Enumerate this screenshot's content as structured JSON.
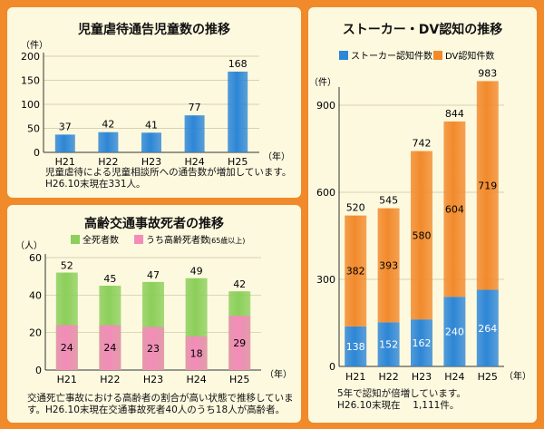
{
  "chart_data": [
    {
      "type": "bar",
      "title": "児童虐待通告児童数の推移",
      "ylabel": "（件）",
      "x_unit": "（年）",
      "categories": [
        "H21",
        "H22",
        "H23",
        "H24",
        "H25"
      ],
      "values": [
        37,
        42,
        41,
        77,
        168
      ],
      "ylim": [
        0,
        200
      ],
      "yticks": [
        0,
        50,
        100,
        150,
        200
      ],
      "colors": {
        "bar": "#2d86d6"
      },
      "notes": [
        "児童虐待による児童相談所への通告数が増加しています。",
        "H26.10末現在331人。"
      ]
    },
    {
      "type": "bar",
      "title": "高齢交通事故死者の推移",
      "ylabel": "（人）",
      "x_unit": "（年）",
      "categories": [
        "H21",
        "H22",
        "H23",
        "H24",
        "H25"
      ],
      "series": [
        {
          "name": "全死者数",
          "values": [
            52,
            45,
            47,
            49,
            42
          ],
          "color": "#8ccf5a"
        },
        {
          "name": "うち高齢死者数",
          "values": [
            24,
            24,
            23,
            18,
            29
          ],
          "color": "#f48cba"
        }
      ],
      "legend_suffix": "(65歳以上)",
      "ylim": [
        0,
        60
      ],
      "yticks": [
        0,
        20,
        40,
        60
      ],
      "notes": [
        "交通死亡事故における高齢者の割合が高い状態で推移していま",
        "す。H26.10末現在交通事故死者40人のうち18人が高齢者。"
      ]
    },
    {
      "type": "bar",
      "stacked": true,
      "title": "ストーカー・DV認知の推移",
      "ylabel": "（件）",
      "x_unit": "（年）",
      "categories": [
        "H21",
        "H22",
        "H23",
        "H24",
        "H25"
      ],
      "series": [
        {
          "name": "ストーカー認知件数",
          "values": [
            138,
            152,
            162,
            240,
            264
          ],
          "color": "#2d86d6"
        },
        {
          "name": "DV認知件数",
          "values": [
            382,
            393,
            580,
            604,
            719
          ],
          "color": "#f28a2c"
        }
      ],
      "totals": [
        520,
        545,
        742,
        844,
        983
      ],
      "ylim": [
        0,
        950
      ],
      "yticks": [
        0,
        300,
        600,
        900
      ],
      "notes": [
        "5年で認知が倍増しています。",
        "H26.10末現在　 1,111件。"
      ]
    }
  ]
}
